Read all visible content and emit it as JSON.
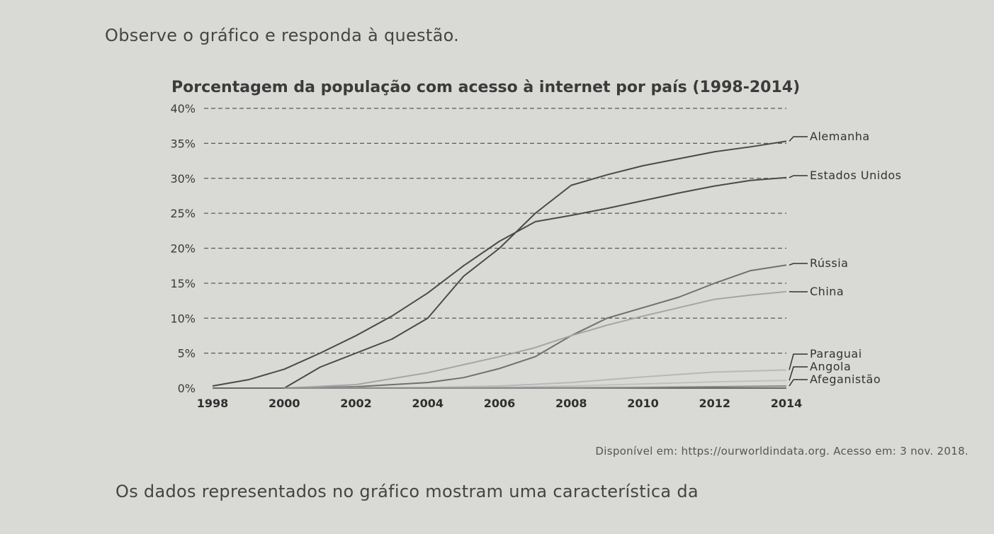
{
  "intro_text": "Observe o gráfico e responda à questão.",
  "source_text": "Disponível em: https://ourworldindata.org. Acesso em: 3 nov. 2018.",
  "question_text": "Os dados representados no gráfico mostram uma característica da",
  "chart_data": {
    "type": "line",
    "title": "Porcentagem da população com acesso à internet por país (1998-2014)",
    "xlabel": "",
    "ylabel": "",
    "x_ticks": [
      "1998",
      "2000",
      "2002",
      "2004",
      "2006",
      "2008",
      "2010",
      "2012",
      "2014"
    ],
    "y_ticks": [
      "0%",
      "5%",
      "10%",
      "15%",
      "20%",
      "25%",
      "30%",
      "35%",
      "40%"
    ],
    "xlim": [
      1998,
      2014
    ],
    "ylim": [
      0,
      40
    ],
    "grid": "dashed horizontal",
    "series": [
      {
        "name": "Alemanha",
        "color": "#4a4a4a",
        "x": [
          2000,
          2001,
          2002,
          2003,
          2004,
          2005,
          2006,
          2007,
          2008,
          2009,
          2010,
          2011,
          2012,
          2013,
          2014
        ],
        "y": [
          0,
          3,
          5,
          7,
          10,
          16,
          20,
          25,
          29,
          30.5,
          31.8,
          32.8,
          33.8,
          34.5,
          35.3
        ]
      },
      {
        "name": "Estados Unidos",
        "color": "#4a4a4a",
        "x": [
          1998,
          1999,
          2000,
          2001,
          2002,
          2003,
          2004,
          2005,
          2006,
          2007,
          2008,
          2009,
          2010,
          2011,
          2012,
          2013,
          2014
        ],
        "y": [
          0.3,
          1.2,
          2.7,
          5.0,
          7.5,
          10.3,
          13.6,
          17.5,
          21.0,
          23.8,
          24.7,
          25.7,
          26.8,
          27.9,
          28.9,
          29.7,
          30.1
        ]
      },
      {
        "name": "Rússia",
        "color": "#707070",
        "x": [
          2000,
          2002,
          2004,
          2005,
          2006,
          2007,
          2008,
          2009,
          2010,
          2011,
          2012,
          2013,
          2014
        ],
        "y": [
          0,
          0.2,
          0.8,
          1.5,
          2.8,
          4.5,
          7.5,
          10,
          11.5,
          13,
          15,
          16.8,
          17.6
        ]
      },
      {
        "name": "China",
        "color": "#a5a5a5",
        "x": [
          2000,
          2002,
          2004,
          2006,
          2007,
          2008,
          2009,
          2010,
          2011,
          2012,
          2013,
          2014
        ],
        "y": [
          0,
          0.5,
          2.2,
          4.5,
          5.8,
          7.5,
          9,
          10.3,
          11.5,
          12.7,
          13.3,
          13.8
        ]
      },
      {
        "name": "Paraguai",
        "color": "#b8b8b8",
        "x": [
          2000,
          2004,
          2006,
          2008,
          2010,
          2012,
          2014
        ],
        "y": [
          0,
          0.1,
          0.3,
          0.8,
          1.6,
          2.3,
          2.6
        ]
      },
      {
        "name": "Angola",
        "color": "#c0c0c0",
        "x": [
          2000,
          2004,
          2006,
          2008,
          2010,
          2012,
          2014
        ],
        "y": [
          0,
          0.05,
          0.1,
          0.3,
          0.6,
          0.9,
          1.1
        ]
      },
      {
        "name": "Afeganistão",
        "color": "#8a8a8a",
        "x": [
          2000,
          2004,
          2006,
          2008,
          2010,
          2012,
          2014
        ],
        "y": [
          0,
          0,
          0.02,
          0.05,
          0.1,
          0.2,
          0.3
        ]
      }
    ]
  }
}
